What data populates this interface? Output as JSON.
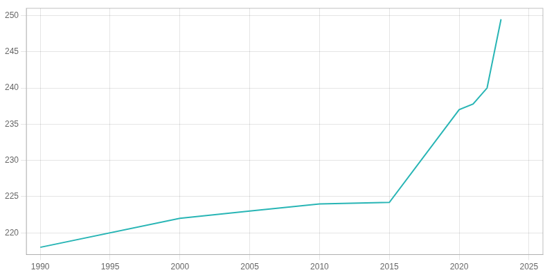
{
  "chart_data": {
    "type": "line",
    "x": [
      1990,
      2000,
      2005,
      2010,
      2015,
      2020,
      2021,
      2022,
      2023
    ],
    "values": [
      218.0,
      222.0,
      223.0,
      224.0,
      224.2,
      237.0,
      237.8,
      240.0,
      249.5
    ],
    "color": "#28b5b5",
    "xlim": [
      1989,
      2026
    ],
    "ylim": [
      217,
      251
    ],
    "xticks": [
      1990,
      1995,
      2000,
      2005,
      2010,
      2015,
      2020,
      2025
    ],
    "yticks": [
      220,
      225,
      230,
      235,
      240,
      245,
      250
    ],
    "grid": true
  }
}
